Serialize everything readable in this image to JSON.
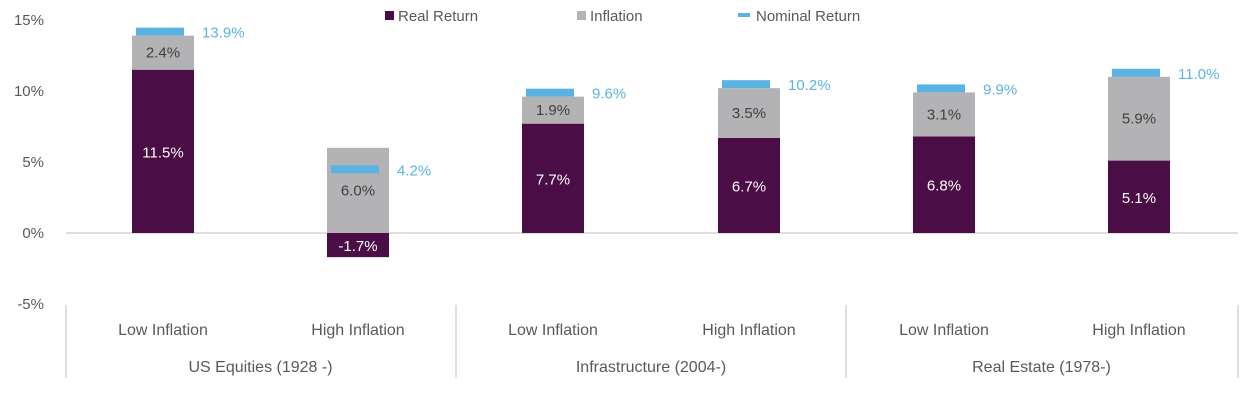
{
  "chart_data": {
    "type": "bar",
    "groups": [
      {
        "name": "US Equities (1928 -)",
        "categories": [
          "Low Inflation",
          "High Inflation"
        ]
      },
      {
        "name": "Infrastructure (2004-)",
        "categories": [
          "Low Inflation",
          "High Inflation"
        ]
      },
      {
        "name": "Real Estate (1978-)",
        "categories": [
          "Low Inflation",
          "High Inflation"
        ]
      }
    ],
    "series": [
      {
        "name": "Real Return",
        "color": "#4a0d45",
        "values": [
          11.5,
          -1.7,
          7.7,
          6.7,
          6.8,
          5.1
        ],
        "labels": [
          "11.5%",
          "-1.7%",
          "7.7%",
          "6.7%",
          "6.8%",
          "5.1%"
        ]
      },
      {
        "name": "Inflation",
        "color": "#b3b3b5",
        "values": [
          2.4,
          6.0,
          1.9,
          3.5,
          3.1,
          5.9
        ],
        "labels": [
          "2.4%",
          "6.0%",
          "1.9%",
          "3.5%",
          "3.1%",
          "5.9%"
        ]
      },
      {
        "name": "Nominal Return",
        "color": "#5bb3e3",
        "values": [
          13.9,
          4.2,
          9.6,
          10.2,
          9.9,
          11.0
        ],
        "labels": [
          "13.9%",
          "4.2%",
          "9.6%",
          "10.2%",
          "9.9%",
          "11.0%"
        ]
      }
    ],
    "y_ticks": [
      "15%",
      "10%",
      "5%",
      "0%",
      "-5%"
    ],
    "ylim": [
      -5,
      15
    ],
    "grid": false,
    "legend": "top-center"
  }
}
